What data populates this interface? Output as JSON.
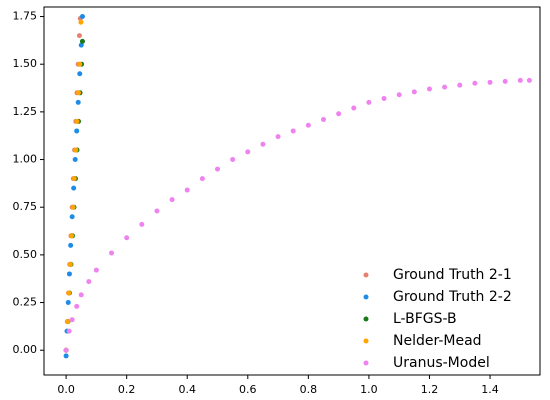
{
  "chart_data": {
    "type": "scatter",
    "xlim": [
      -0.073,
      1.565
    ],
    "ylim": [
      -0.13,
      1.8
    ],
    "xticks": [
      {
        "value": 0,
        "label": "0.0"
      },
      {
        "value": 0.2,
        "label": "0.2"
      },
      {
        "value": 0.4,
        "label": "0.4"
      },
      {
        "value": 0.6,
        "label": "0.6"
      },
      {
        "value": 0.8,
        "label": "0.8"
      },
      {
        "value": 1.0,
        "label": "1.0"
      },
      {
        "value": 1.2,
        "label": "1.2"
      },
      {
        "value": 1.4,
        "label": "1.4"
      }
    ],
    "yticks": [
      {
        "value": 0,
        "label": "0.00"
      },
      {
        "value": 0.25,
        "label": "0.25"
      },
      {
        "value": 0.5,
        "label": "0.50"
      },
      {
        "value": 0.75,
        "label": "0.75"
      },
      {
        "value": 1.0,
        "label": "1.00"
      },
      {
        "value": 1.25,
        "label": "1.25"
      },
      {
        "value": 1.5,
        "label": "1.50"
      },
      {
        "value": 1.75,
        "label": "1.75"
      }
    ],
    "legend": "lower right",
    "series": [
      {
        "name": "Ground Truth 2-1",
        "color": "#e8806f",
        "x": [
          0,
          0.004,
          0.008,
          0.012,
          0.016,
          0.02,
          0.024,
          0.028,
          0.032,
          0.036,
          0.04,
          0.044,
          0.047
        ],
        "values": [
          0,
          0.15,
          0.3,
          0.45,
          0.6,
          0.75,
          0.9,
          1.05,
          1.2,
          1.35,
          1.5,
          1.65,
          1.74
        ]
      },
      {
        "name": "Ground Truth 2-2",
        "color": "#1e8ce6",
        "x": [
          0,
          0.003,
          0.007,
          0.011,
          0.015,
          0.02,
          0.025,
          0.03,
          0.035,
          0.04,
          0.045,
          0.05,
          0.054
        ],
        "values": [
          -0.03,
          0.1,
          0.25,
          0.4,
          0.55,
          0.7,
          0.85,
          1.0,
          1.15,
          1.3,
          1.45,
          1.6,
          1.75
        ]
      },
      {
        "name": "L-BFGS-B",
        "color": "#1a7a1a",
        "x": [
          0,
          0.006,
          0.011,
          0.016,
          0.021,
          0.026,
          0.031,
          0.036,
          0.041,
          0.046,
          0.051,
          0.054
        ],
        "values": [
          0,
          0.15,
          0.3,
          0.45,
          0.6,
          0.75,
          0.9,
          1.05,
          1.2,
          1.35,
          1.5,
          1.62
        ]
      },
      {
        "name": "Nelder-Mead",
        "color": "#ffa500",
        "x": [
          0,
          0.005,
          0.009,
          0.014,
          0.018,
          0.023,
          0.027,
          0.032,
          0.036,
          0.041,
          0.045,
          0.049
        ],
        "values": [
          0,
          0.15,
          0.3,
          0.45,
          0.6,
          0.75,
          0.9,
          1.05,
          1.2,
          1.35,
          1.5,
          1.72
        ]
      },
      {
        "name": "Uranus-Model",
        "color": "#ee82ee",
        "x": [
          0,
          0.01,
          0.02,
          0.035,
          0.05,
          0.075,
          0.1,
          0.15,
          0.2,
          0.25,
          0.3,
          0.35,
          0.4,
          0.45,
          0.5,
          0.55,
          0.6,
          0.65,
          0.7,
          0.75,
          0.8,
          0.85,
          0.9,
          0.95,
          1.0,
          1.05,
          1.1,
          1.15,
          1.2,
          1.25,
          1.3,
          1.35,
          1.4,
          1.45,
          1.5,
          1.53
        ],
        "values": [
          0,
          0.1,
          0.16,
          0.23,
          0.29,
          0.36,
          0.42,
          0.51,
          0.59,
          0.66,
          0.73,
          0.79,
          0.84,
          0.9,
          0.95,
          1.0,
          1.04,
          1.08,
          1.12,
          1.15,
          1.18,
          1.21,
          1.24,
          1.27,
          1.3,
          1.32,
          1.34,
          1.355,
          1.37,
          1.38,
          1.39,
          1.4,
          1.405,
          1.41,
          1.415,
          1.415
        ]
      }
    ]
  }
}
